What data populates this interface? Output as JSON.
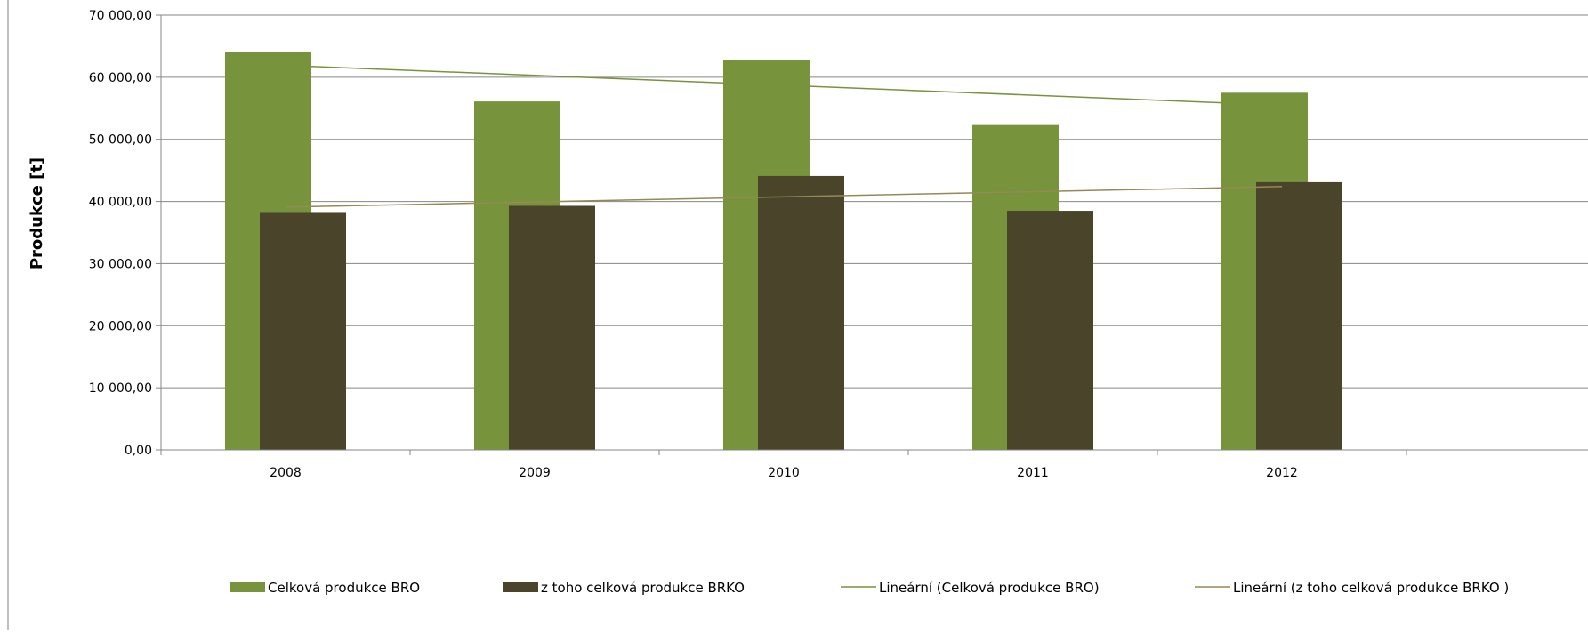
{
  "chart_data": {
    "type": "bar",
    "title": "",
    "ylabel": "Produkce [t]",
    "xlabel": "",
    "categories": [
      "2008",
      "2009",
      "2010",
      "2011",
      "2012"
    ],
    "ylim": [
      0,
      70000
    ],
    "yticks": [
      0,
      10000,
      20000,
      30000,
      40000,
      50000,
      60000,
      70000
    ],
    "ytick_labels": [
      "0,00",
      "10 000,00",
      "20 000,00",
      "30 000,00",
      "40 000,00",
      "50 000,00",
      "60 000,00",
      "70 000,00"
    ],
    "grid": true,
    "legend_position": "bottom",
    "series": [
      {
        "name": "Celková produkce BRO",
        "kind": "bar",
        "color": "#77933c",
        "values": [
          64100,
          56100,
          62700,
          52300,
          57500
        ]
      },
      {
        "name": "z toho celková produkce BRKO",
        "kind": "bar",
        "color": "#4a452a",
        "values": [
          38300,
          39300,
          44100,
          38500,
          43100
        ]
      }
    ],
    "trendlines": [
      {
        "name": "Lineární (Celková produkce BRO)",
        "kind": "line",
        "color": "#77933c",
        "start": 61900,
        "end": 55500
      },
      {
        "name": "Lineární (z toho celková produkce BRKO )",
        "kind": "line",
        "color": "#948a54",
        "start": 39100,
        "end": 42400
      }
    ]
  }
}
